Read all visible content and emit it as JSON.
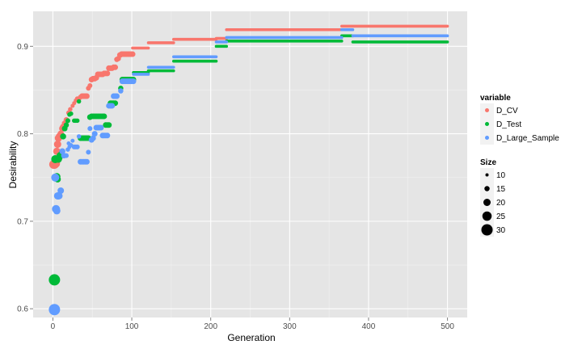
{
  "chart_data": {
    "type": "scatter",
    "xlabel": "Generation",
    "ylabel": "Desirability",
    "xlim": [
      -25,
      525
    ],
    "ylim": [
      0.59,
      0.94
    ],
    "x_ticks": [
      0,
      100,
      200,
      300,
      400,
      500
    ],
    "y_ticks": [
      0.6,
      0.7,
      0.8,
      0.9
    ],
    "grid": true,
    "legend_position": "right",
    "color_legend": {
      "title": "variable",
      "entries": [
        {
          "label": "D_CV",
          "color": "#F8766D"
        },
        {
          "label": "D_Test",
          "color": "#00BA38"
        },
        {
          "label": "D_Large_Sample",
          "color": "#619CFF"
        }
      ]
    },
    "size_legend": {
      "title": "Size",
      "entries": [
        {
          "label": "10",
          "value": 10
        },
        {
          "label": "15",
          "value": 15
        },
        {
          "label": "20",
          "value": 20
        },
        {
          "label": "25",
          "value": 25
        },
        {
          "label": "30",
          "value": 30
        }
      ]
    },
    "size_range": [
      10,
      30
    ],
    "series": [
      {
        "name": "D_CV",
        "color": "#F8766D",
        "points": [
          {
            "x": 1,
            "y": 0.765,
            "size": 24
          },
          {
            "x": 2,
            "y": 0.765,
            "size": 24
          },
          {
            "x": 3,
            "y": 0.765,
            "size": 22
          },
          {
            "x": 4,
            "y": 0.766,
            "size": 22
          },
          {
            "x": 5,
            "y": 0.78,
            "size": 20
          },
          {
            "x": 6,
            "y": 0.788,
            "size": 20
          },
          {
            "x": 7,
            "y": 0.795,
            "size": 20
          },
          {
            "x": 8,
            "y": 0.797,
            "size": 19
          },
          {
            "x": 10,
            "y": 0.8,
            "size": 18
          },
          {
            "x": 12,
            "y": 0.806,
            "size": 18
          },
          {
            "x": 13,
            "y": 0.808,
            "size": 17
          },
          {
            "x": 15,
            "y": 0.812,
            "size": 16
          },
          {
            "x": 17,
            "y": 0.816,
            "size": 15
          },
          {
            "x": 20,
            "y": 0.824,
            "size": 14
          },
          {
            "x": 22,
            "y": 0.828,
            "size": 13
          },
          {
            "x": 25,
            "y": 0.832,
            "size": 12
          },
          {
            "x": 27,
            "y": 0.835,
            "size": 12
          },
          {
            "x": 29,
            "y": 0.838,
            "size": 12
          },
          {
            "x": 31,
            "y": 0.84,
            "size": 14
          },
          {
            "x": 33,
            "y": 0.84,
            "size": 14
          },
          {
            "x": 35,
            "y": 0.842,
            "size": 14
          },
          {
            "x": 37,
            "y": 0.843,
            "size": 16
          },
          {
            "x": 39,
            "y": 0.843,
            "size": 16
          },
          {
            "x": 41,
            "y": 0.843,
            "size": 16
          },
          {
            "x": 43,
            "y": 0.843,
            "size": 16
          },
          {
            "x": 45,
            "y": 0.852,
            "size": 14
          },
          {
            "x": 47,
            "y": 0.855,
            "size": 14
          },
          {
            "x": 49,
            "y": 0.862,
            "size": 16
          },
          {
            "x": 51,
            "y": 0.863,
            "size": 16
          },
          {
            "x": 53,
            "y": 0.863,
            "size": 16
          },
          {
            "x": 55,
            "y": 0.864,
            "size": 16
          },
          {
            "x": 57,
            "y": 0.868,
            "size": 16
          },
          {
            "x": 59,
            "y": 0.868,
            "size": 16
          },
          {
            "x": 61,
            "y": 0.868,
            "size": 16
          },
          {
            "x": 63,
            "y": 0.868,
            "size": 16
          },
          {
            "x": 65,
            "y": 0.869,
            "size": 16
          },
          {
            "x": 67,
            "y": 0.869,
            "size": 16
          },
          {
            "x": 69,
            "y": 0.869,
            "size": 16
          },
          {
            "x": 71,
            "y": 0.875,
            "size": 16
          },
          {
            "x": 73,
            "y": 0.875,
            "size": 16
          },
          {
            "x": 75,
            "y": 0.875,
            "size": 16
          },
          {
            "x": 77,
            "y": 0.876,
            "size": 16
          },
          {
            "x": 79,
            "y": 0.876,
            "size": 16
          },
          {
            "x": 81,
            "y": 0.885,
            "size": 15
          },
          {
            "x": 83,
            "y": 0.886,
            "size": 15
          },
          {
            "x": 85,
            "y": 0.89,
            "size": 16
          },
          {
            "x": 87,
            "y": 0.891,
            "size": 16
          },
          {
            "x": 89,
            "y": 0.891,
            "size": 16
          },
          {
            "x": 91,
            "y": 0.891,
            "size": 16
          },
          {
            "x": 93,
            "y": 0.891,
            "size": 16
          },
          {
            "x": 95,
            "y": 0.891,
            "size": 16
          },
          {
            "x": 97,
            "y": 0.891,
            "size": 16
          },
          {
            "x": 99,
            "y": 0.891,
            "size": 16
          },
          {
            "x": 101,
            "y": 0.891,
            "size": 16
          }
        ],
        "segments": [
          {
            "x0": 101,
            "x1": 121,
            "y": 0.898
          },
          {
            "x0": 121,
            "x1": 153,
            "y": 0.904
          },
          {
            "x0": 153,
            "x1": 207,
            "y": 0.908
          },
          {
            "x0": 207,
            "x1": 220,
            "y": 0.909
          },
          {
            "x0": 220,
            "x1": 366,
            "y": 0.919
          },
          {
            "x0": 366,
            "x1": 500,
            "y": 0.923
          }
        ]
      },
      {
        "name": "D_Test",
        "color": "#00BA38",
        "points": [
          {
            "x": 2,
            "y": 0.633,
            "size": 30
          },
          {
            "x": 3,
            "y": 0.771,
            "size": 22
          },
          {
            "x": 5,
            "y": 0.751,
            "size": 20
          },
          {
            "x": 6,
            "y": 0.748,
            "size": 18
          },
          {
            "x": 7,
            "y": 0.771,
            "size": 20
          },
          {
            "x": 8,
            "y": 0.773,
            "size": 19
          },
          {
            "x": 9,
            "y": 0.775,
            "size": 19
          },
          {
            "x": 11,
            "y": 0.777,
            "size": 18
          },
          {
            "x": 13,
            "y": 0.797,
            "size": 17
          },
          {
            "x": 15,
            "y": 0.806,
            "size": 16
          },
          {
            "x": 17,
            "y": 0.81,
            "size": 15
          },
          {
            "x": 19,
            "y": 0.815,
            "size": 14
          },
          {
            "x": 21,
            "y": 0.822,
            "size": 13
          },
          {
            "x": 23,
            "y": 0.823,
            "size": 13
          },
          {
            "x": 27,
            "y": 0.815,
            "size": 13
          },
          {
            "x": 29,
            "y": 0.815,
            "size": 13
          },
          {
            "x": 31,
            "y": 0.815,
            "size": 13
          },
          {
            "x": 33,
            "y": 0.837,
            "size": 13
          },
          {
            "x": 35,
            "y": 0.795,
            "size": 16
          },
          {
            "x": 37,
            "y": 0.795,
            "size": 16
          },
          {
            "x": 39,
            "y": 0.795,
            "size": 16
          },
          {
            "x": 41,
            "y": 0.795,
            "size": 16
          },
          {
            "x": 43,
            "y": 0.795,
            "size": 16
          },
          {
            "x": 45,
            "y": 0.795,
            "size": 16
          },
          {
            "x": 47,
            "y": 0.819,
            "size": 16
          },
          {
            "x": 49,
            "y": 0.82,
            "size": 16
          },
          {
            "x": 51,
            "y": 0.82,
            "size": 16
          },
          {
            "x": 53,
            "y": 0.82,
            "size": 16
          },
          {
            "x": 55,
            "y": 0.82,
            "size": 16
          },
          {
            "x": 57,
            "y": 0.82,
            "size": 16
          },
          {
            "x": 59,
            "y": 0.82,
            "size": 16
          },
          {
            "x": 61,
            "y": 0.82,
            "size": 16
          },
          {
            "x": 63,
            "y": 0.82,
            "size": 16
          },
          {
            "x": 65,
            "y": 0.82,
            "size": 16
          },
          {
            "x": 67,
            "y": 0.81,
            "size": 16
          },
          {
            "x": 69,
            "y": 0.81,
            "size": 16
          },
          {
            "x": 71,
            "y": 0.81,
            "size": 16
          },
          {
            "x": 73,
            "y": 0.835,
            "size": 16
          },
          {
            "x": 75,
            "y": 0.835,
            "size": 16
          },
          {
            "x": 77,
            "y": 0.835,
            "size": 16
          },
          {
            "x": 79,
            "y": 0.835,
            "size": 16
          },
          {
            "x": 86,
            "y": 0.852,
            "size": 15
          },
          {
            "x": 88,
            "y": 0.862,
            "size": 16
          },
          {
            "x": 90,
            "y": 0.862,
            "size": 16
          },
          {
            "x": 92,
            "y": 0.862,
            "size": 16
          },
          {
            "x": 94,
            "y": 0.862,
            "size": 16
          },
          {
            "x": 96,
            "y": 0.862,
            "size": 16
          },
          {
            "x": 98,
            "y": 0.862,
            "size": 16
          },
          {
            "x": 100,
            "y": 0.862,
            "size": 16
          },
          {
            "x": 102,
            "y": 0.862,
            "size": 16
          }
        ],
        "segments": [
          {
            "x0": 102,
            "x1": 121,
            "y": 0.87
          },
          {
            "x0": 121,
            "x1": 153,
            "y": 0.872
          },
          {
            "x0": 153,
            "x1": 207,
            "y": 0.883
          },
          {
            "x0": 207,
            "x1": 220,
            "y": 0.9
          },
          {
            "x0": 220,
            "x1": 366,
            "y": 0.906
          },
          {
            "x0": 366,
            "x1": 380,
            "y": 0.912
          },
          {
            "x0": 380,
            "x1": 500,
            "y": 0.905
          }
        ]
      },
      {
        "name": "D_Large_Sample",
        "color": "#619CFF",
        "points": [
          {
            "x": 2,
            "y": 0.599,
            "size": 30
          },
          {
            "x": 3,
            "y": 0.75,
            "size": 22
          },
          {
            "x": 4,
            "y": 0.714,
            "size": 22
          },
          {
            "x": 5,
            "y": 0.712,
            "size": 20
          },
          {
            "x": 6,
            "y": 0.729,
            "size": 20
          },
          {
            "x": 7,
            "y": 0.729,
            "size": 20
          },
          {
            "x": 8,
            "y": 0.729,
            "size": 19
          },
          {
            "x": 10,
            "y": 0.735,
            "size": 18
          },
          {
            "x": 12,
            "y": 0.78,
            "size": 17
          },
          {
            "x": 14,
            "y": 0.775,
            "size": 16
          },
          {
            "x": 17,
            "y": 0.775,
            "size": 14
          },
          {
            "x": 19,
            "y": 0.782,
            "size": 13
          },
          {
            "x": 20,
            "y": 0.789,
            "size": 12
          },
          {
            "x": 21,
            "y": 0.785,
            "size": 12
          },
          {
            "x": 23,
            "y": 0.787,
            "size": 12
          },
          {
            "x": 25,
            "y": 0.792,
            "size": 12
          },
          {
            "x": 27,
            "y": 0.785,
            "size": 14
          },
          {
            "x": 29,
            "y": 0.785,
            "size": 14
          },
          {
            "x": 31,
            "y": 0.785,
            "size": 14
          },
          {
            "x": 33,
            "y": 0.797,
            "size": 13
          },
          {
            "x": 35,
            "y": 0.768,
            "size": 16
          },
          {
            "x": 37,
            "y": 0.768,
            "size": 16
          },
          {
            "x": 39,
            "y": 0.768,
            "size": 16
          },
          {
            "x": 41,
            "y": 0.768,
            "size": 16
          },
          {
            "x": 43,
            "y": 0.768,
            "size": 16
          },
          {
            "x": 45,
            "y": 0.779,
            "size": 14
          },
          {
            "x": 47,
            "y": 0.806,
            "size": 14
          },
          {
            "x": 49,
            "y": 0.793,
            "size": 16
          },
          {
            "x": 51,
            "y": 0.795,
            "size": 16
          },
          {
            "x": 53,
            "y": 0.8,
            "size": 16
          },
          {
            "x": 55,
            "y": 0.807,
            "size": 16
          },
          {
            "x": 57,
            "y": 0.807,
            "size": 16
          },
          {
            "x": 59,
            "y": 0.807,
            "size": 16
          },
          {
            "x": 61,
            "y": 0.807,
            "size": 16
          },
          {
            "x": 63,
            "y": 0.798,
            "size": 16
          },
          {
            "x": 65,
            "y": 0.798,
            "size": 16
          },
          {
            "x": 67,
            "y": 0.798,
            "size": 16
          },
          {
            "x": 69,
            "y": 0.798,
            "size": 16
          },
          {
            "x": 71,
            "y": 0.832,
            "size": 16
          },
          {
            "x": 73,
            "y": 0.832,
            "size": 16
          },
          {
            "x": 75,
            "y": 0.832,
            "size": 16
          },
          {
            "x": 77,
            "y": 0.843,
            "size": 16
          },
          {
            "x": 79,
            "y": 0.843,
            "size": 16
          },
          {
            "x": 81,
            "y": 0.843,
            "size": 16
          },
          {
            "x": 86,
            "y": 0.849,
            "size": 15
          },
          {
            "x": 88,
            "y": 0.86,
            "size": 16
          },
          {
            "x": 90,
            "y": 0.86,
            "size": 16
          },
          {
            "x": 92,
            "y": 0.86,
            "size": 16
          },
          {
            "x": 94,
            "y": 0.86,
            "size": 16
          },
          {
            "x": 96,
            "y": 0.86,
            "size": 16
          },
          {
            "x": 98,
            "y": 0.86,
            "size": 16
          },
          {
            "x": 100,
            "y": 0.86,
            "size": 16
          },
          {
            "x": 102,
            "y": 0.86,
            "size": 16
          }
        ],
        "segments": [
          {
            "x0": 102,
            "x1": 121,
            "y": 0.868
          },
          {
            "x0": 121,
            "x1": 153,
            "y": 0.876
          },
          {
            "x0": 153,
            "x1": 207,
            "y": 0.888
          },
          {
            "x0": 207,
            "x1": 220,
            "y": 0.905
          },
          {
            "x0": 220,
            "x1": 366,
            "y": 0.91
          },
          {
            "x0": 366,
            "x1": 380,
            "y": 0.919
          },
          {
            "x0": 380,
            "x1": 500,
            "y": 0.912
          }
        ]
      }
    ]
  }
}
